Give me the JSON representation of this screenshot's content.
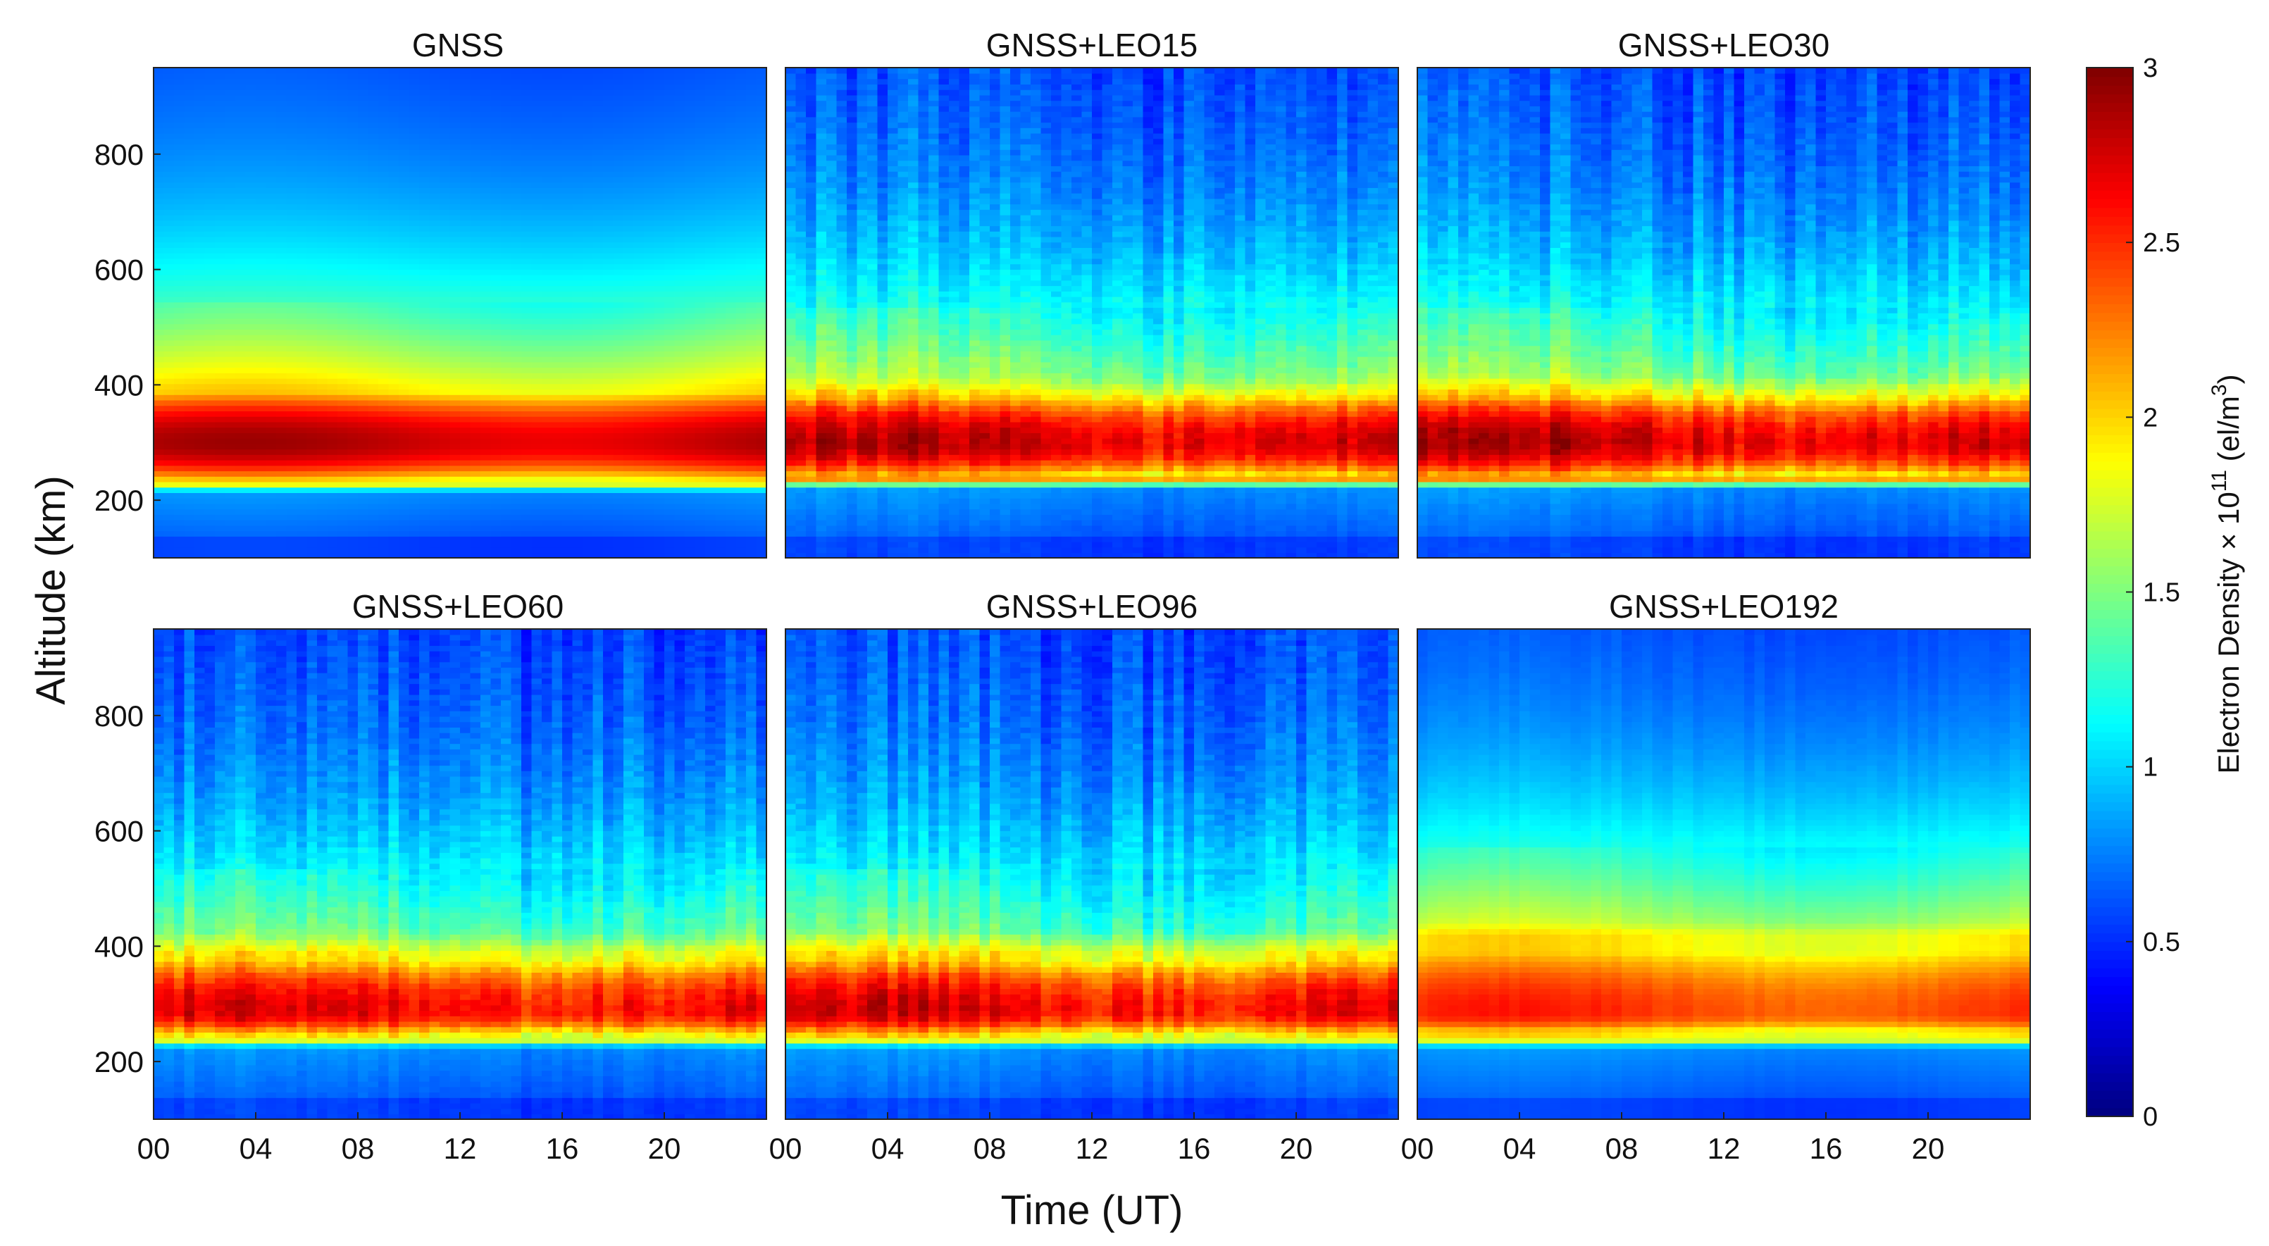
{
  "colormap": [
    "#00007f",
    "#0000ff",
    "#007fff",
    "#00ffff",
    "#7fff7f",
    "#ffff00",
    "#ff7f00",
    "#ff0000",
    "#7f0000"
  ],
  "chart_data": {
    "type": "heatmap",
    "layout": "2x3 grid of panels with shared axes",
    "xlabel": "Time (UT)",
    "ylabel": "Altitude (km)",
    "xlim": [
      0,
      24
    ],
    "ylim": [
      100,
      950
    ],
    "x_ticks": [
      "00",
      "04",
      "08",
      "12",
      "16",
      "20"
    ],
    "x_tick_values": [
      0,
      4,
      8,
      12,
      16,
      20
    ],
    "y_ticks": [
      "200",
      "400",
      "600",
      "800"
    ],
    "y_tick_values": [
      200,
      400,
      600,
      800
    ],
    "colorbar": {
      "label_prefix": "Electron Density × 10",
      "label_exp": "11",
      "label_unit_open": " (el/m",
      "label_unit_exp": "3",
      "label_unit_close": ")",
      "range": [
        0,
        3
      ],
      "ticks": [
        "0",
        "0.5",
        "1",
        "1.5",
        "2",
        "2.5",
        "3"
      ],
      "tick_values": [
        0,
        0.5,
        1,
        1.5,
        2,
        2.5,
        3
      ]
    },
    "panels": [
      {
        "title": "GNSS",
        "peak_altitude_km": 300,
        "peak_density": 2.8,
        "layer_bottom_km": 235,
        "layer_top_km": 390,
        "topside_density": 1.5,
        "noise": 0.0
      },
      {
        "title": "GNSS+LEO15",
        "peak_altitude_km": 300,
        "peak_density": 2.75,
        "layer_bottom_km": 240,
        "layer_top_km": 385,
        "topside_density": 1.25,
        "noise": 0.25
      },
      {
        "title": "GNSS+LEO30",
        "peak_altitude_km": 300,
        "peak_density": 2.75,
        "layer_bottom_km": 240,
        "layer_top_km": 385,
        "topside_density": 1.2,
        "noise": 0.25
      },
      {
        "title": "GNSS+LEO60",
        "peak_altitude_km": 290,
        "peak_density": 2.65,
        "layer_bottom_km": 245,
        "layer_top_km": 385,
        "topside_density": 1.15,
        "noise": 0.25
      },
      {
        "title": "GNSS+LEO96",
        "peak_altitude_km": 290,
        "peak_density": 2.65,
        "layer_bottom_km": 245,
        "layer_top_km": 385,
        "topside_density": 1.1,
        "noise": 0.25
      },
      {
        "title": "GNSS+LEO192",
        "peak_altitude_km": 285,
        "peak_density": 2.45,
        "layer_bottom_km": 245,
        "layer_top_km": 420,
        "topside_density": 1.3,
        "noise": 0.05
      }
    ]
  }
}
